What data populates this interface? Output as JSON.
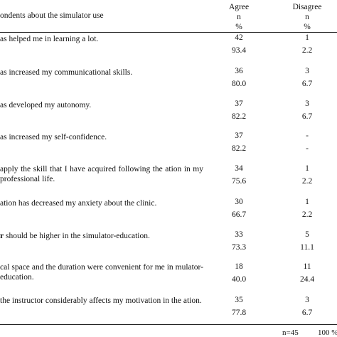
{
  "header": {
    "title": "ondents about the simulator use",
    "agree": [
      "Agree",
      "n",
      "%"
    ],
    "disagree": [
      "Disagree",
      "n",
      "%"
    ]
  },
  "rows": [
    {
      "bold": "",
      "text": "as helped me in learning a lot.",
      "agree_n": "42",
      "agree_p": "93.4",
      "dis_n": "1",
      "dis_p": "2.2"
    },
    {
      "bold": "",
      "text": "as increased my communicational skills.",
      "agree_n": "36",
      "agree_p": "80.0",
      "dis_n": "3",
      "dis_p": "6.7"
    },
    {
      "bold": "",
      "text": "as developed my autonomy.",
      "agree_n": "37",
      "agree_p": "82.2",
      "dis_n": "3",
      "dis_p": "6.7"
    },
    {
      "bold": "",
      "text": "as increased my self-confidence.",
      "agree_n": "37",
      "agree_p": "82.2",
      "dis_n": "-",
      "dis_p": "-"
    },
    {
      "bold": "",
      "text": "apply the skill that I have acquired following the ation in my professional life.",
      "agree_n": "34",
      "agree_p": "75.6",
      "dis_n": "1",
      "dis_p": "2.2"
    },
    {
      "bold": "",
      "text": "ation has decreased my anxiety about the clinic.",
      "agree_n": "30",
      "agree_p": "66.7",
      "dis_n": "1",
      "dis_p": "2.2"
    },
    {
      "bold": "r",
      "text": " should be higher in the simulator-education.",
      "agree_n": "33",
      "agree_p": "73.3",
      "dis_n": "5",
      "dis_p": "11.1"
    },
    {
      "bold": "",
      "text": "cal space and the duration were convenient for me in mulator-education.",
      "agree_n": "18",
      "agree_p": "40.0",
      "dis_n": "11",
      "dis_p": "24.4"
    },
    {
      "bold": "",
      "text": "the instructor considerably affects my motivation in the ation.",
      "agree_n": "35",
      "agree_p": "77.8",
      "dis_n": "3",
      "dis_p": "6.7"
    }
  ],
  "footer": {
    "n": "n=45",
    "pct": "100 %"
  }
}
